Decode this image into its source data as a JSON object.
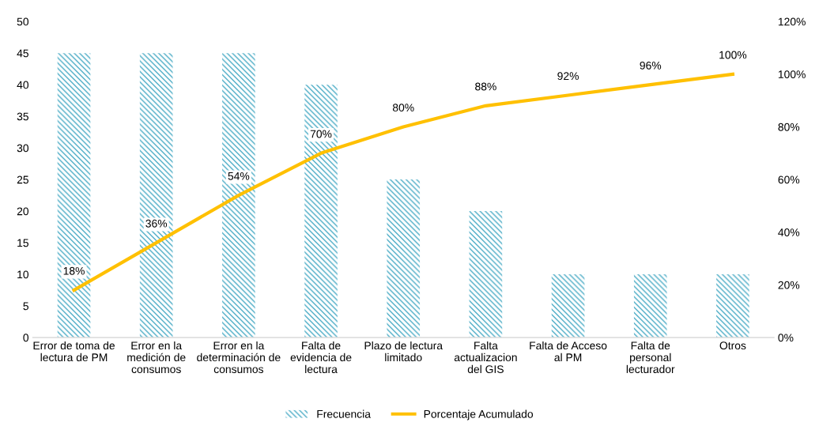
{
  "chart_data": {
    "type": "bar",
    "categories": [
      "Error de toma de lectura de PM",
      "Error en la medición de consumos",
      "Error en la determinación de consumos",
      "Falta de evidencia de lectura",
      "Plazo de lectura limitado",
      "Falta actualizacion del GIS",
      "Falta de Acceso al PM",
      "Falta de personal lecturador",
      "Otros"
    ],
    "series": [
      {
        "name": "Frecuencia",
        "color": "#4bacc6",
        "values": [
          45,
          45,
          45,
          40,
          25,
          20,
          10,
          10,
          10
        ]
      },
      {
        "name": "Porcentaje Acumulado",
        "type": "line",
        "axis": "y2",
        "color": "#ffc000",
        "values": [
          18,
          36,
          54,
          70,
          80,
          88,
          92,
          96,
          100
        ],
        "value_labels": [
          "18%",
          "36%",
          "54%",
          "70%",
          "80%",
          "88%",
          "92%",
          "96%",
          "100%"
        ]
      }
    ],
    "ylim": [
      0,
      50
    ],
    "yticks": [
      0,
      5,
      10,
      15,
      20,
      25,
      30,
      35,
      40,
      45,
      50
    ],
    "y2lim": [
      0,
      120
    ],
    "y2ticks": [
      {
        "value": 0,
        "label": "0%"
      },
      {
        "value": 20,
        "label": "20%"
      },
      {
        "value": 40,
        "label": "40%"
      },
      {
        "value": 60,
        "label": "60%"
      },
      {
        "value": 80,
        "label": "80%"
      },
      {
        "value": 100,
        "label": "100%"
      },
      {
        "value": 120,
        "label": "120%"
      }
    ],
    "grid": false,
    "legend": "bottom",
    "marker": "none",
    "line_style": "solid"
  }
}
